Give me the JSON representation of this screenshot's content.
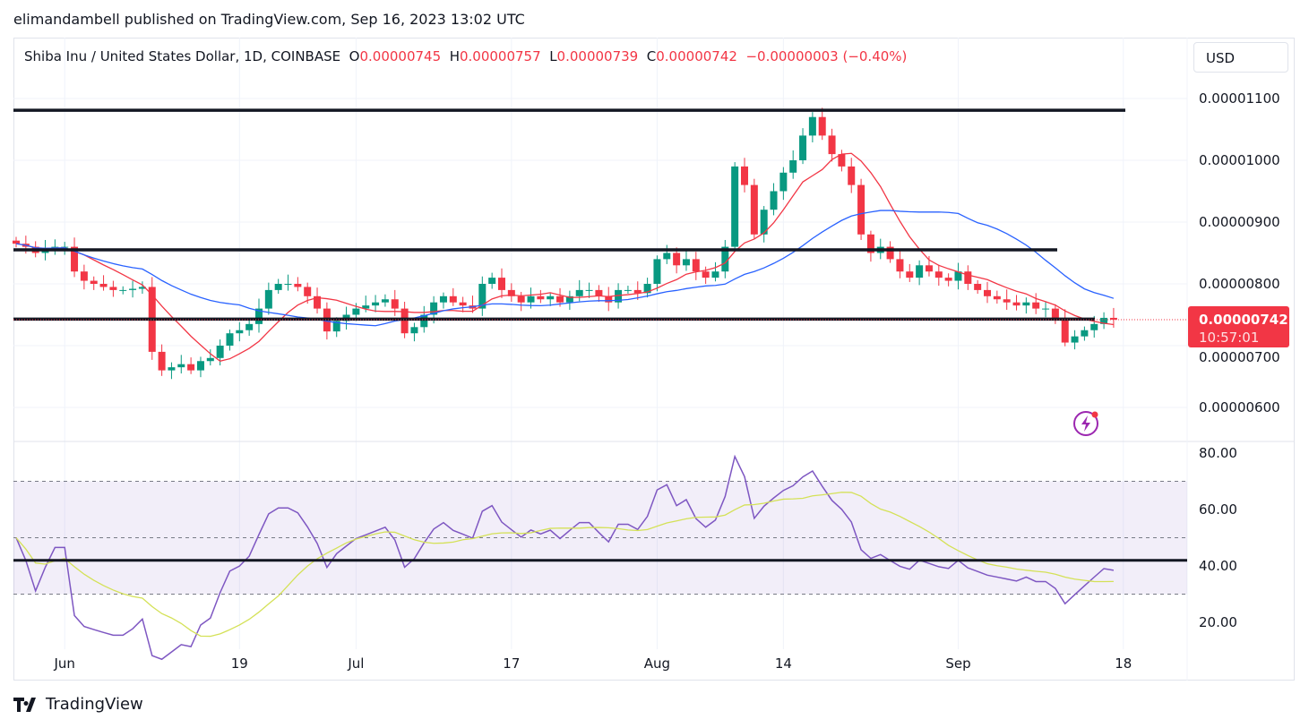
{
  "publisher_line": "elimandambell published on TradingView.com, Sep 16, 2023 13:02 UTC",
  "legend": {
    "symbol": "Shiba Inu / United States Dollar, 1D, COINBASE",
    "o_label": "O",
    "o": "0.00000745",
    "h_label": "H",
    "h": "0.00000757",
    "l_label": "L",
    "l": "0.00000739",
    "c_label": "C",
    "c": "0.00000742",
    "change": "−0.00000003 (−0.40%)"
  },
  "currency_button": "USD",
  "last_price": {
    "value": "0.00000742",
    "countdown": "10:57:01"
  },
  "brand": "TradingView",
  "colors": {
    "up": "#089981",
    "down": "#f23645",
    "ma_fast": "#f23645",
    "ma_slow": "#2962ff",
    "rsi": "#7e57c2",
    "rsi_ma": "#d4e157",
    "band": "#7e57c2"
  },
  "chart_data": {
    "type": "candlestick",
    "price_unit": "1e-8 USD",
    "start_date": "2023-05-27",
    "first_open": 870,
    "closes": [
      865,
      860,
      850,
      855,
      860,
      860,
      820,
      805,
      800,
      795,
      790,
      790,
      792,
      795,
      690,
      660,
      665,
      670,
      660,
      675,
      680,
      700,
      720,
      725,
      735,
      760,
      790,
      800,
      800,
      795,
      780,
      760,
      723,
      740,
      750,
      760,
      765,
      770,
      775,
      760,
      720,
      730,
      750,
      770,
      780,
      770,
      765,
      760,
      800,
      810,
      790,
      780,
      770,
      780,
      775,
      780,
      770,
      780,
      790,
      790,
      780,
      770,
      790,
      790,
      785,
      800,
      840,
      850,
      830,
      840,
      820,
      810,
      820,
      860,
      990,
      960,
      880,
      920,
      950,
      980,
      1000,
      1040,
      1070,
      1040,
      1010,
      990,
      960,
      880,
      850,
      860,
      840,
      820,
      810,
      830,
      820,
      810,
      805,
      820,
      800,
      790,
      780,
      775,
      770,
      765,
      770,
      760,
      760,
      745,
      705,
      715,
      725,
      735,
      745,
      742
    ],
    "y_ticks": [
      "0.00001100",
      "0.00001000",
      "0.00000900",
      "0.00000800",
      "0.00000700",
      "0.00000600"
    ],
    "y_tick_values": [
      1100,
      1000,
      900,
      800,
      700,
      600
    ],
    "x_ticks": [
      "Jun",
      "19",
      "Jul",
      "17",
      "Aug",
      "14",
      "Sep",
      "18"
    ],
    "x_tick_dates": [
      "2023-06-01",
      "2023-06-19",
      "2023-07-01",
      "2023-07-17",
      "2023-08-01",
      "2023-08-14",
      "2023-09-01",
      "2023-09-18"
    ],
    "support_resistance": [
      1081,
      855,
      743
    ],
    "rsi": {
      "ticks": [
        "80.00",
        "60.00",
        "40.00",
        "20.00"
      ],
      "tick_values": [
        80,
        60,
        40,
        20
      ],
      "band": [
        30,
        70
      ],
      "mid": 50,
      "trendline": 42
    }
  }
}
